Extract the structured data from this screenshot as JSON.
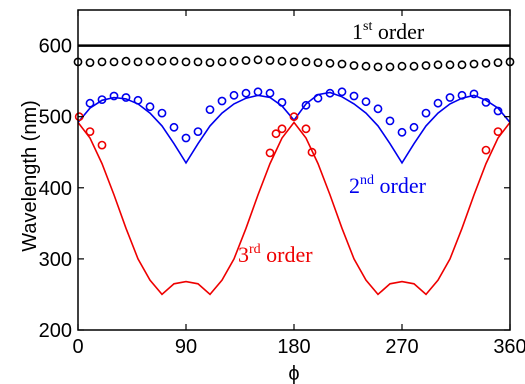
{
  "chart_data": {
    "type": "scatter",
    "title": "",
    "xlabel": "ϕ",
    "ylabel": "Wavelength (nm)",
    "xlim": [
      0,
      360
    ],
    "ylim": [
      200,
      650
    ],
    "xticks": [
      "0",
      "90",
      "180",
      "270",
      "360"
    ],
    "yticks": [
      "200",
      "300",
      "400",
      "500",
      "600"
    ],
    "grid": false,
    "annotations": [
      {
        "base": "1",
        "sup": "st",
        "tail": " order",
        "color": "#000000"
      },
      {
        "base": "2",
        "sup": "nd",
        "tail": " order",
        "color": "#0000ee"
      },
      {
        "base": "3",
        "sup": "rd",
        "tail": " order",
        "color": "#ee0000"
      }
    ],
    "series": [
      {
        "order": "1st",
        "kind": "line",
        "color": "#000000",
        "x": [
          0,
          360
        ],
        "y": [
          600,
          600
        ]
      },
      {
        "order": "1st",
        "kind": "markers",
        "color": "#000000",
        "x": [
          0,
          10,
          20,
          30,
          40,
          50,
          60,
          70,
          80,
          90,
          100,
          110,
          120,
          130,
          140,
          150,
          160,
          170,
          180,
          190,
          200,
          210,
          220,
          230,
          240,
          250,
          260,
          270,
          280,
          290,
          300,
          310,
          320,
          330,
          340,
          350,
          360
        ],
        "y": [
          577,
          576,
          577,
          577,
          578,
          577,
          578,
          578,
          578,
          577,
          577,
          576,
          577,
          578,
          579,
          580,
          579,
          578,
          577,
          577,
          576,
          575,
          574,
          572,
          571,
          570,
          570,
          571,
          571,
          572,
          573,
          573,
          573,
          574,
          575,
          576,
          577
        ]
      },
      {
        "order": "2nd",
        "kind": "line",
        "color": "#0000ee",
        "x": [
          0,
          10,
          20,
          30,
          40,
          50,
          60,
          70,
          80,
          90,
          100,
          110,
          120,
          130,
          140,
          150,
          160,
          170,
          180,
          190,
          200,
          210,
          220,
          230,
          240,
          250,
          260,
          270,
          280,
          290,
          300,
          310,
          320,
          330,
          340,
          350,
          360
        ],
        "y": [
          492,
          512,
          523,
          527,
          525,
          518,
          505,
          487,
          462,
          435,
          462,
          487,
          505,
          518,
          526,
          530,
          527,
          515,
          495,
          518,
          531,
          534,
          528,
          518,
          505,
          487,
          462,
          435,
          462,
          487,
          505,
          518,
          526,
          530,
          523,
          512,
          492
        ]
      },
      {
        "order": "2nd",
        "kind": "markers",
        "color": "#0000ee",
        "x": [
          10,
          20,
          30,
          40,
          50,
          60,
          70,
          80,
          90,
          100,
          110,
          120,
          130,
          140,
          150,
          160,
          170,
          190,
          200,
          210,
          220,
          230,
          240,
          250,
          260,
          270,
          280,
          290,
          300,
          310,
          320,
          330,
          340,
          350
        ],
        "y": [
          519,
          524,
          529,
          527,
          523,
          514,
          505,
          485,
          470,
          479,
          510,
          522,
          530,
          533,
          535,
          533,
          520,
          516,
          526,
          533,
          535,
          529,
          521,
          511,
          494,
          478,
          485,
          505,
          519,
          527,
          530,
          532,
          520,
          508
        ]
      },
      {
        "order": "3rd",
        "kind": "line",
        "color": "#ee0000",
        "x": [
          0,
          10,
          20,
          30,
          40,
          50,
          60,
          70,
          80,
          90,
          100,
          110,
          120,
          130,
          140,
          150,
          160,
          170,
          180,
          190,
          200,
          210,
          220,
          230,
          240,
          250,
          260,
          270,
          280,
          290,
          300,
          310,
          320,
          330,
          340,
          350,
          360
        ],
        "y": [
          492,
          470,
          434,
          390,
          343,
          300,
          270,
          250,
          265,
          268,
          265,
          250,
          270,
          300,
          343,
          390,
          434,
          470,
          492,
          470,
          434,
          390,
          343,
          300,
          270,
          250,
          265,
          268,
          265,
          250,
          270,
          300,
          343,
          390,
          434,
          470,
          492
        ]
      },
      {
        "order": "3rd",
        "kind": "markers",
        "color": "#ee0000",
        "x": [
          1,
          10,
          20,
          160,
          165,
          170,
          180,
          190,
          195,
          340,
          350
        ],
        "y": [
          500,
          479,
          460,
          449,
          476,
          483,
          500,
          483,
          450,
          453,
          479
        ]
      }
    ]
  }
}
